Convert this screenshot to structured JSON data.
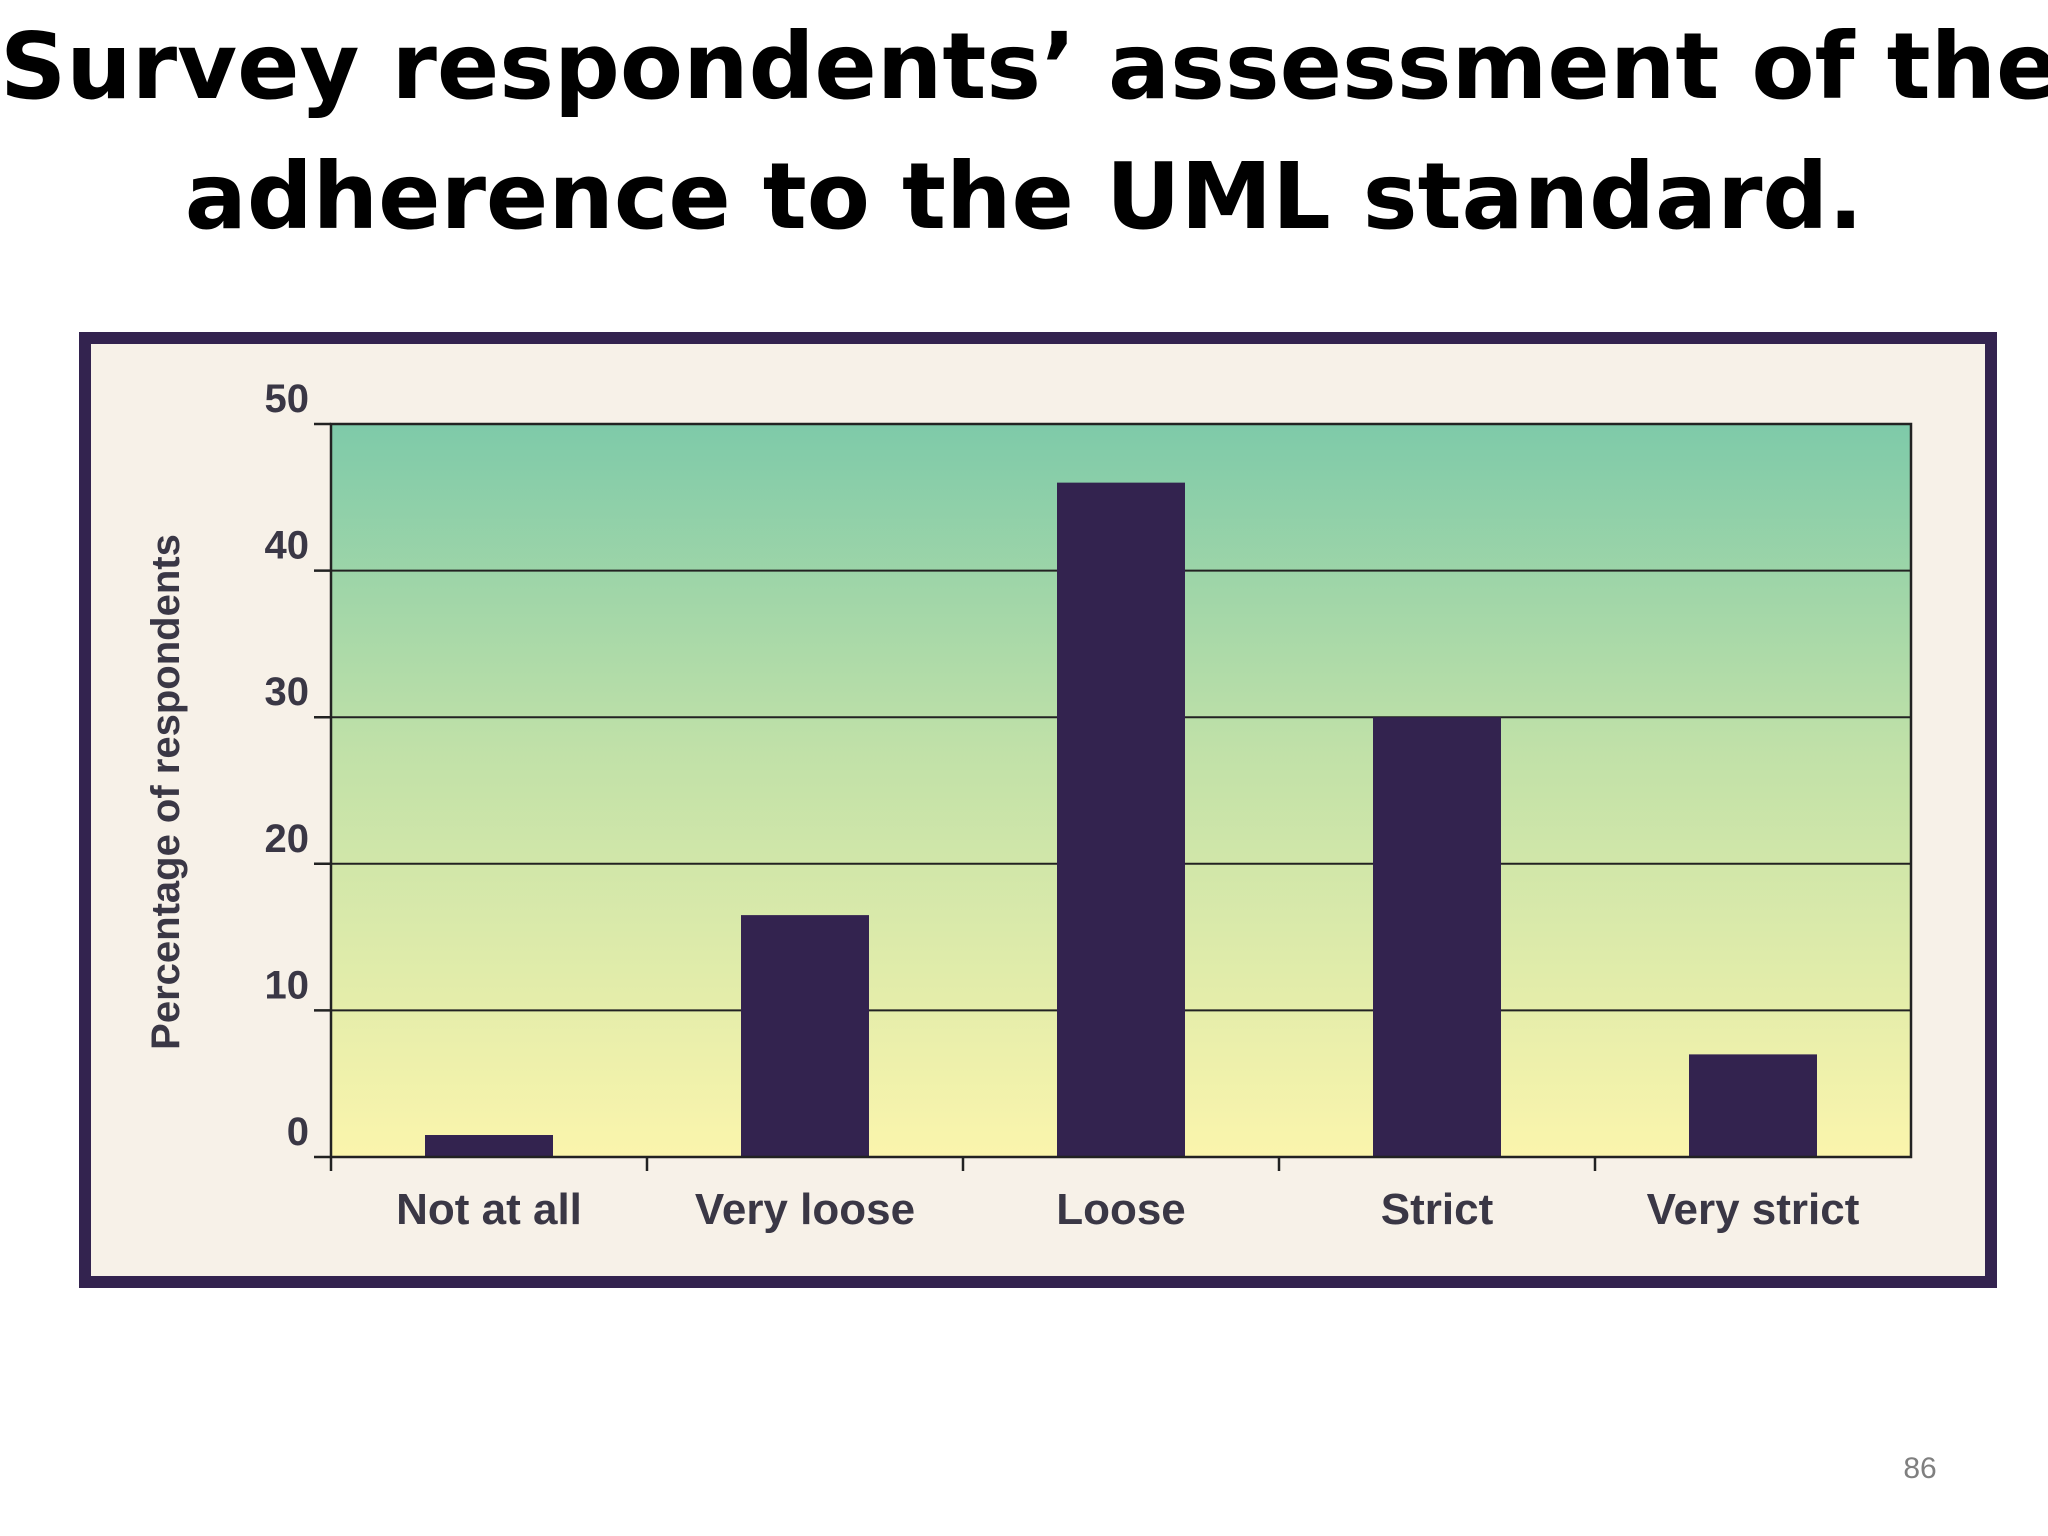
{
  "slide": {
    "title_line1": "Survey respondents’ assessment of their",
    "title_line2": "adherence to the UML standard.",
    "page_number": "86"
  },
  "colors": {
    "bar": "#33234f",
    "frame": "#33234f",
    "frame_fill": "#f7f1e8",
    "plot_top": "#7ecaa9",
    "plot_bottom": "#fbf5ac"
  },
  "chart_data": {
    "type": "bar",
    "title": "",
    "xlabel": "",
    "ylabel": "Percentage of respondents",
    "categories": [
      "Not at all",
      "Very loose",
      "Loose",
      "Strict",
      "Very strict"
    ],
    "values": [
      1.5,
      16.5,
      46,
      30,
      7
    ],
    "yticks": [
      "0",
      "10",
      "20",
      "30",
      "40",
      "50"
    ],
    "ylim": [
      0,
      50
    ],
    "grid": true,
    "legend": "none"
  }
}
